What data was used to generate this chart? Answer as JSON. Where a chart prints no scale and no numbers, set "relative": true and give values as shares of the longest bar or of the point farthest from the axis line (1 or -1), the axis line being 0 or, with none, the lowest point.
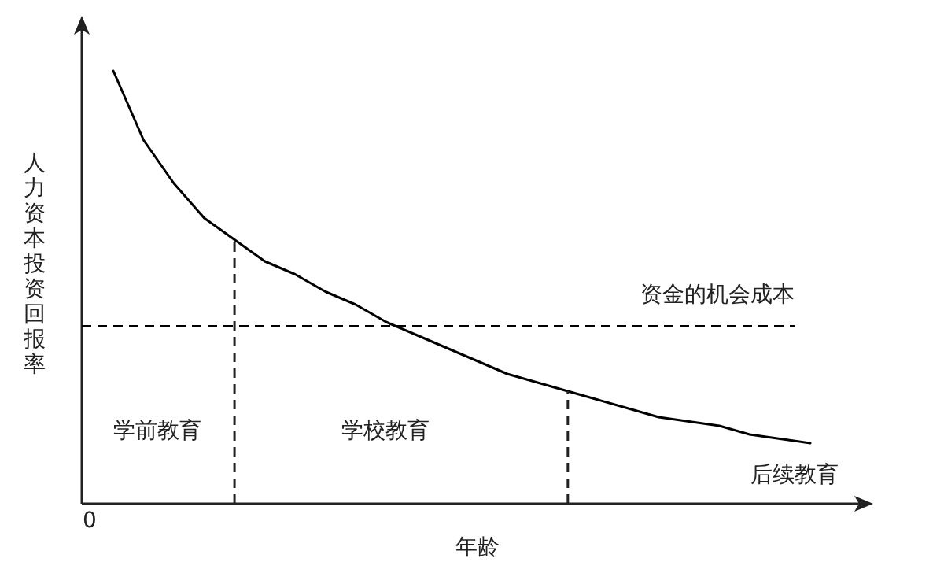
{
  "chart_data": {
    "type": "line",
    "relative": true,
    "xlabel": "年龄",
    "ylabel": "人力资本投资回报率",
    "categories": [
      null,
      null,
      null,
      null,
      null,
      null,
      null,
      null,
      null,
      null,
      null,
      null,
      null,
      null,
      null,
      null,
      null,
      null,
      null,
      null,
      null,
      null,
      null,
      null
    ],
    "series": [
      {
        "color": "#000000",
        "values": [
          1.0,
          0.84,
          0.74,
          0.66,
          0.61,
          0.56,
          0.53,
          0.49,
          0.46,
          0.42,
          0.39,
          0.36,
          0.33,
          0.3,
          0.28,
          0.26,
          0.24,
          0.22,
          0.2,
          0.19,
          0.18,
          0.16,
          0.15,
          0.14
        ]
      }
    ],
    "ref_lines": [
      {
        "axis": "y",
        "value": 0.41,
        "label": "资金的机会成本",
        "line_style": "dashed",
        "color": "#000000"
      }
    ],
    "annotations": [
      "学前教育",
      "学校教育",
      "后续教育",
      "0"
    ]
  }
}
